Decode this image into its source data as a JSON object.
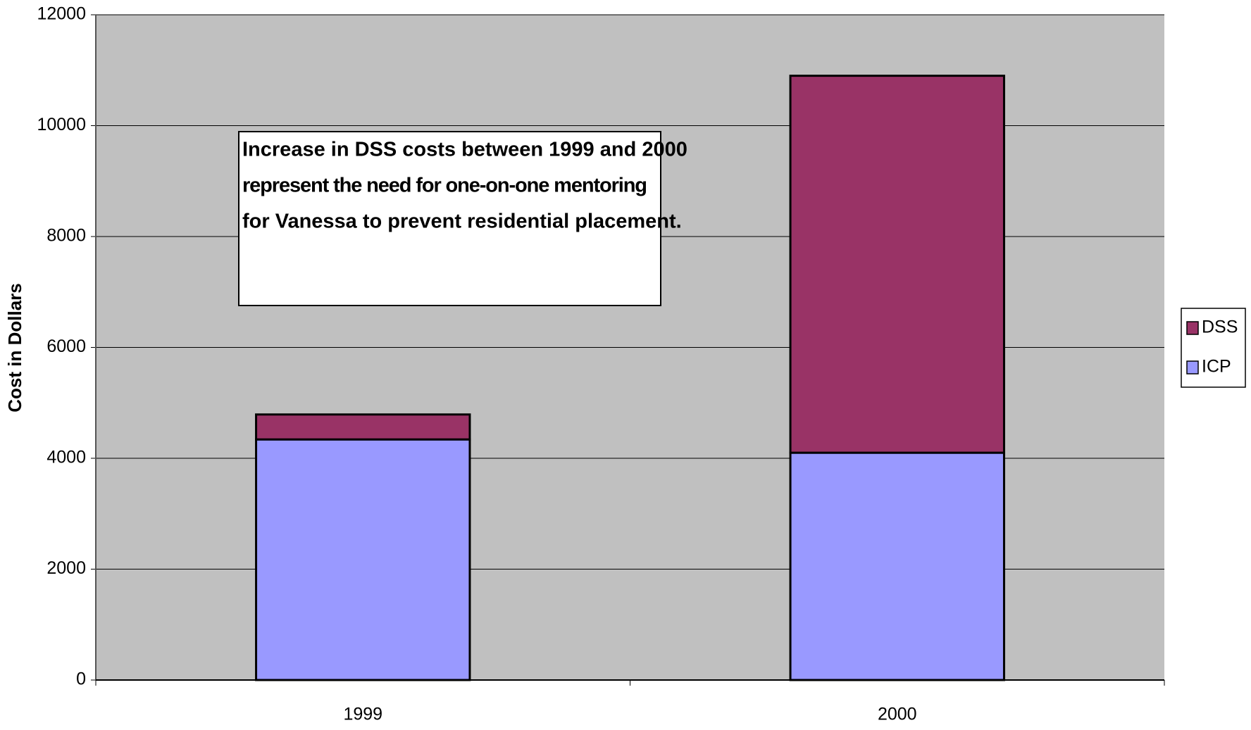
{
  "chart_data": {
    "type": "stacked_bar",
    "ylabel": "Cost in Dollars",
    "categories": [
      "1999",
      "2000"
    ],
    "series": [
      {
        "name": "ICP",
        "color": "#9999ff",
        "values": [
          4340,
          4100
        ]
      },
      {
        "name": "DSS",
        "color": "#993366",
        "values": [
          450,
          6800
        ]
      }
    ],
    "ylim": [
      0,
      12000
    ],
    "yticks": [
      0,
      2000,
      4000,
      6000,
      8000,
      10000,
      12000
    ],
    "grid": true,
    "legend": "right",
    "annotation": [
      "Increase in DSS costs between 1999 and 2000",
      "represent the need for one-on-one mentoring",
      "for Vanessa to prevent residential placement."
    ]
  }
}
